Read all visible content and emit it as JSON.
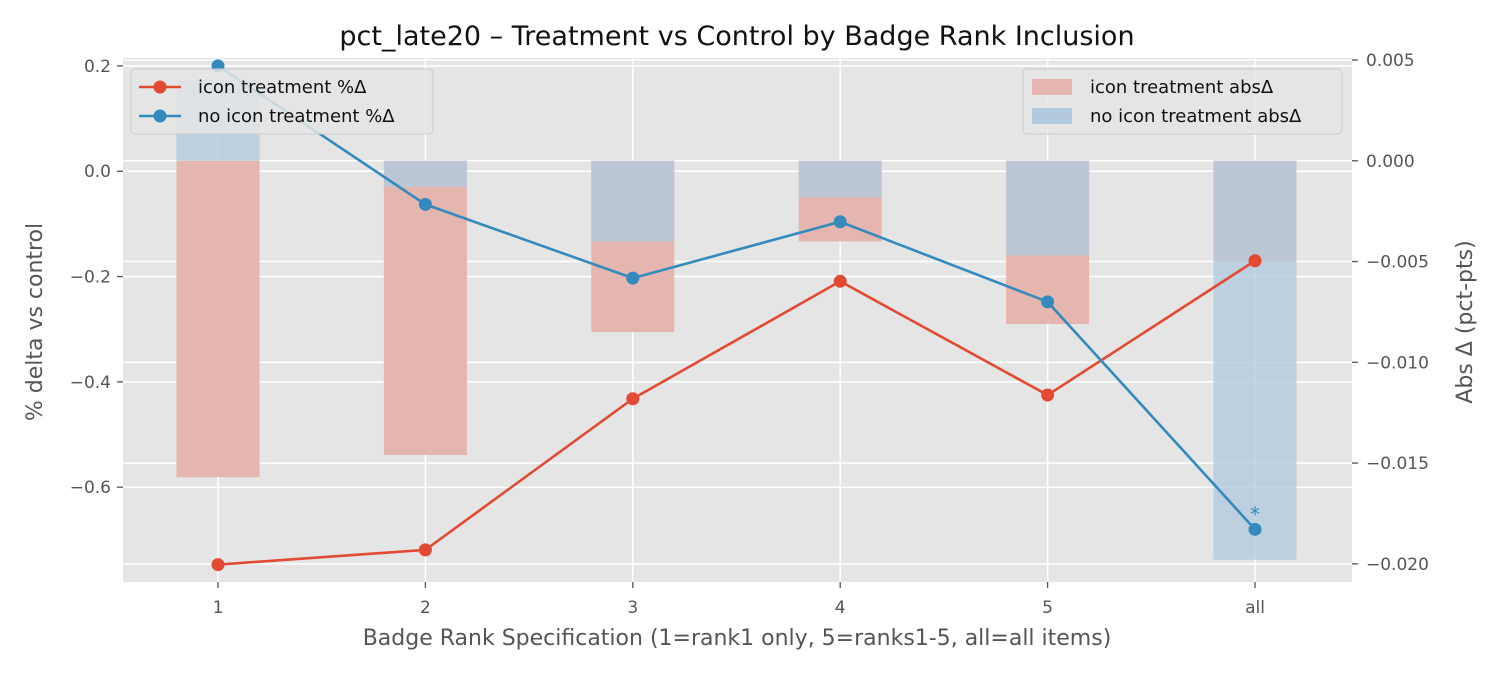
{
  "chart_data": {
    "type": "bar+line",
    "title": "pct_late20 – Treatment vs Control by Badge Rank Inclusion",
    "xlabel": "Badge Rank Specification (1=rank1 only, 5=ranks1-5, all=all items)",
    "ylabel_left": "% delta vs control",
    "ylabel_right": "Abs Δ (pct-pts)",
    "categories": [
      "1",
      "2",
      "3",
      "4",
      "5",
      "all"
    ],
    "ylim_left": [
      -0.78,
      0.215
    ],
    "ylim_right": [
      -0.0209,
      0.0051
    ],
    "left_ticks": [
      {
        "value": 0.2,
        "label": "0.2"
      },
      {
        "value": 0.0,
        "label": "0.0"
      },
      {
        "value": -0.2,
        "label": "−0.2"
      },
      {
        "value": -0.4,
        "label": "−0.4"
      },
      {
        "value": -0.6,
        "label": "−0.6"
      }
    ],
    "right_ticks": [
      {
        "value": 0.005,
        "label": "0.005"
      },
      {
        "value": 0.0,
        "label": "0.000"
      },
      {
        "value": -0.005,
        "label": "−0.005"
      },
      {
        "value": -0.01,
        "label": "−0.010"
      },
      {
        "value": -0.015,
        "label": "−0.015"
      },
      {
        "value": -0.02,
        "label": "−0.020"
      }
    ],
    "grid": true,
    "bar_series": [
      {
        "name": "icon treatment absΔ",
        "axis": "right",
        "color": "#e5b6b0",
        "values": [
          -0.0157,
          -0.0146,
          -0.0085,
          -0.004,
          -0.0081,
          -0.005
        ]
      },
      {
        "name": "no icon treatment absΔ",
        "axis": "right",
        "color": "#b1cadd",
        "values": [
          0.004,
          -0.0013,
          -0.004,
          -0.0018,
          -0.0047,
          -0.0198
        ]
      }
    ],
    "line_series": [
      {
        "name": "icon treatment %Δ",
        "axis": "left",
        "color": "#e24a33",
        "values": [
          -0.747,
          -0.719,
          -0.432,
          -0.209,
          -0.425,
          -0.17
        ]
      },
      {
        "name": "no icon treatment %Δ",
        "axis": "left",
        "color": "#348abd",
        "values": [
          0.2,
          -0.063,
          -0.203,
          -0.096,
          -0.248,
          -0.68
        ]
      }
    ],
    "annotations": [
      {
        "category": "all",
        "series": "no icon treatment %Δ",
        "text": "*"
      }
    ],
    "legend_left_placement": "top-left",
    "legend_right_placement": "top-right"
  }
}
